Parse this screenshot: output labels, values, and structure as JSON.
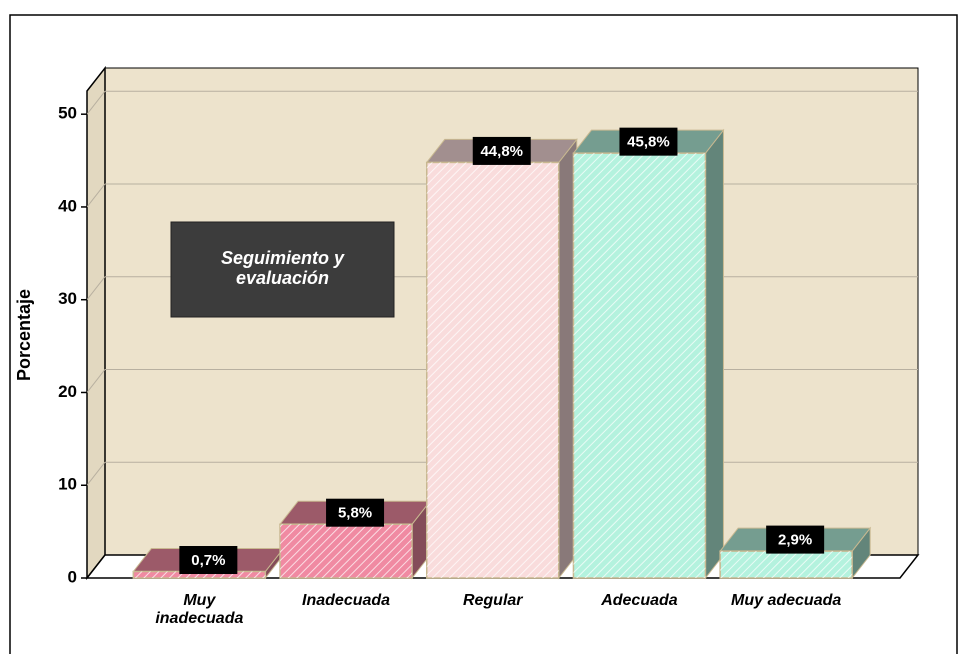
{
  "chart_data": {
    "type": "bar3d",
    "categories": [
      "Muy inadecuada",
      "Inadecuada",
      "Regular",
      "Adecuada",
      "Muy adecuada"
    ],
    "values": [
      0.7,
      5.8,
      44.8,
      45.8,
      2.9
    ],
    "value_labels": [
      "0,7%",
      "5,8%",
      "44,8%",
      "45,8%",
      "2,9%"
    ],
    "colors": [
      "#f08aa2",
      "#f08aa2",
      "#f9dcdc",
      "#b4f2de",
      "#b4f2de"
    ],
    "y_label": "Porcentaje",
    "annotation": "Seguimiento y evaluación",
    "ylim": [
      0,
      52.5
    ],
    "yticks": [
      0,
      10,
      20,
      30,
      40,
      50
    ],
    "grid": true
  }
}
